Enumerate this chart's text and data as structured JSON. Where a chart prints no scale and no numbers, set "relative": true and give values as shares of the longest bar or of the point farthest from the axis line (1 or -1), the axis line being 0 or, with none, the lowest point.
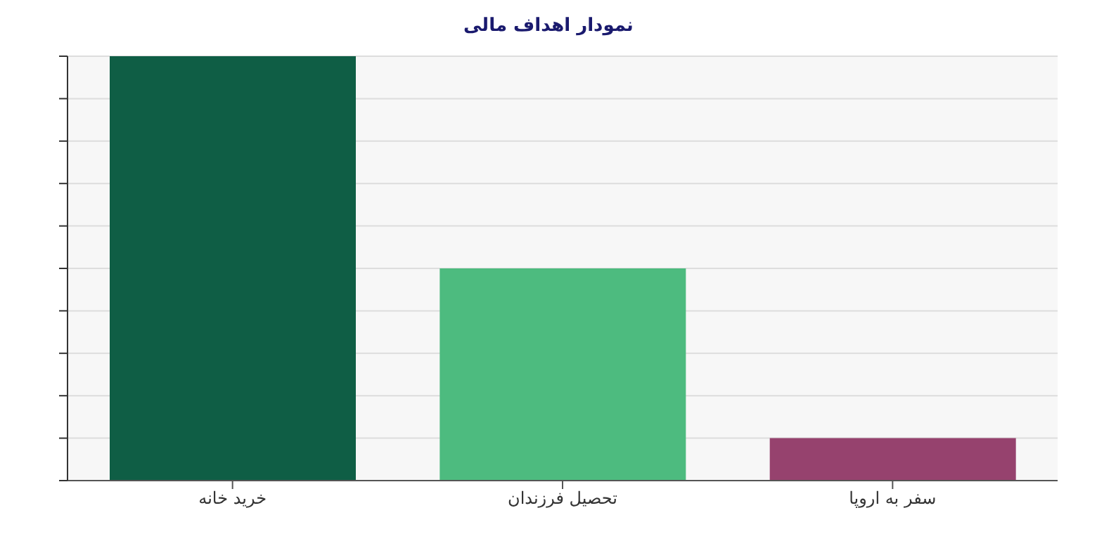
{
  "chart_data": {
    "type": "bar",
    "title": "نمودار اهداف مالی",
    "categories": [
      "خرید خانه",
      "تحصیل فرزندان",
      "سفر به اروپا"
    ],
    "values": [
      1,
      0.5,
      0.1
    ],
    "colors": [
      "#0f5e45",
      "#4dbb7f",
      "#96426e"
    ],
    "relative": true,
    "grid": "y"
  }
}
